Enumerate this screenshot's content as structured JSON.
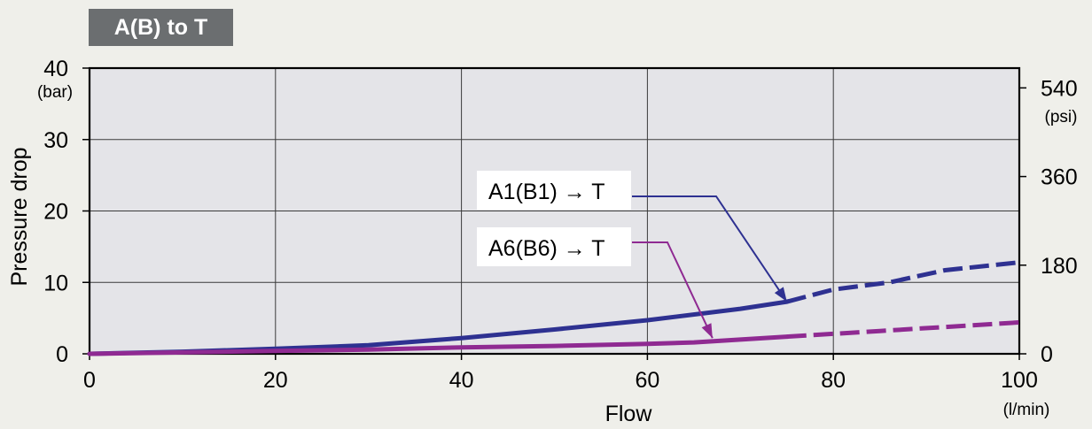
{
  "chart_data": {
    "type": "line",
    "title": "A(B) to T",
    "xlabel": "Flow",
    "xunit": "(l/min)",
    "ylabel": "Pressure drop",
    "yunit": "(bar)",
    "y2unit": "(psi)",
    "xlim": [
      0,
      100
    ],
    "ylim": [
      0,
      40
    ],
    "xticks": [
      0,
      20,
      40,
      60,
      80,
      100
    ],
    "yticks": [
      0,
      10,
      20,
      30,
      40
    ],
    "y2ticks": [
      {
        "label": "0",
        "bar": 0
      },
      {
        "label": "180",
        "bar": 12.41
      },
      {
        "label": "360",
        "bar": 24.82
      },
      {
        "label": "540",
        "bar": 37.23
      }
    ],
    "grid": true,
    "series": [
      {
        "name": "A1(B1) → T",
        "color": "#2e3191",
        "solid": [
          [
            0,
            0
          ],
          [
            10,
            0.3
          ],
          [
            20,
            0.7
          ],
          [
            30,
            1.2
          ],
          [
            40,
            2.2
          ],
          [
            50,
            3.4
          ],
          [
            60,
            4.7
          ],
          [
            70,
            6.3
          ],
          [
            75,
            7.3
          ]
        ],
        "dashed": [
          [
            75,
            7.3
          ],
          [
            80,
            9.0
          ],
          [
            86,
            10.0
          ],
          [
            92,
            11.7
          ],
          [
            100,
            12.8
          ]
        ]
      },
      {
        "name": "A6(B6) → T",
        "color": "#8f2a92",
        "solid": [
          [
            0,
            0
          ],
          [
            10,
            0.2
          ],
          [
            20,
            0.4
          ],
          [
            30,
            0.6
          ],
          [
            40,
            0.9
          ],
          [
            50,
            1.1
          ],
          [
            60,
            1.4
          ],
          [
            65,
            1.6
          ],
          [
            75,
            2.4
          ]
        ],
        "dashed": [
          [
            75,
            2.4
          ],
          [
            85,
            3.2
          ],
          [
            100,
            4.4
          ]
        ]
      }
    ]
  }
}
